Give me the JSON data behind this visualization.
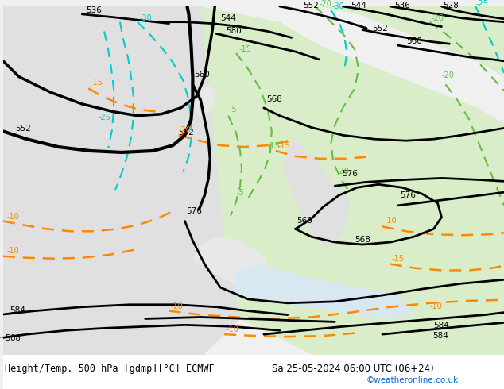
{
  "title_left": "Height/Temp. 500 hPa [gdmp][°C] ECMWF",
  "title_right": "Sa 25-05-2024 06:00 UTC (06+24)",
  "credit": "©weatheronline.co.uk",
  "figsize": [
    6.34,
    4.9
  ],
  "dpi": 100,
  "bg_color": "#f0f0f0",
  "map_bg_light": "#d8edc8",
  "map_bg_gray": "#c8c8c8",
  "contour_black_color": "#000000",
  "contour_green_color": "#66bb44",
  "contour_cyan_color": "#00cccc",
  "contour_orange_color": "#ff8800",
  "bottom_bar_color": "#ffffff",
  "label_color_black": "#000000",
  "label_color_green": "#88cc44",
  "label_color_cyan": "#00aaaa",
  "label_color_orange": "#ff8800"
}
